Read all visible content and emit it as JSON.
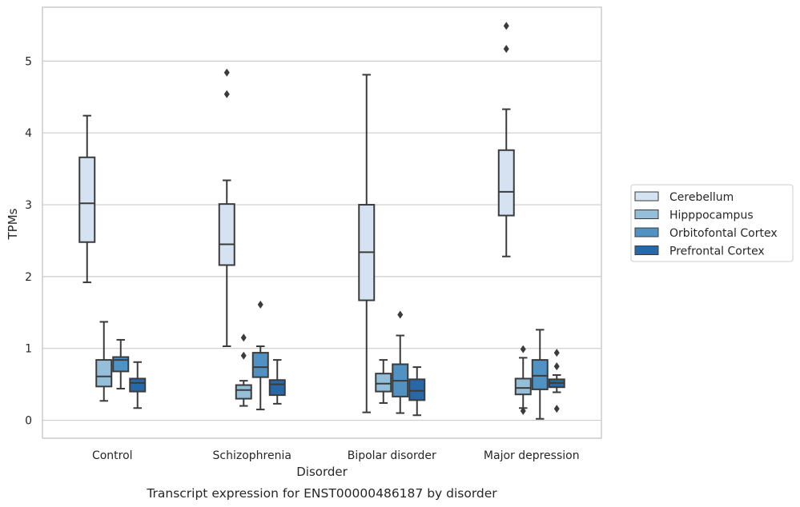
{
  "caption": "Transcript expression for ENST00000486187 by disorder",
  "chart_data": {
    "type": "boxplot",
    "xlabel": "Disorder",
    "ylabel": "TPMs",
    "ylim": [
      -0.25,
      5.75
    ],
    "yticks": [
      0,
      1,
      2,
      3,
      4,
      5
    ],
    "grid": "horizontal",
    "legend_position": "right",
    "categories": [
      "Control",
      "Schizophrenia",
      "Bipolar disorder",
      "Major depression"
    ],
    "series": [
      {
        "name": "Cerebellum",
        "color": "#d4e2f1",
        "boxes": [
          {
            "whisker_low": 1.92,
            "q1": 2.48,
            "median": 3.02,
            "q3": 3.66,
            "whisker_high": 4.24,
            "outliers": []
          },
          {
            "whisker_low": 1.03,
            "q1": 2.16,
            "median": 2.45,
            "q3": 3.01,
            "whisker_high": 3.34,
            "outliers": [
              4.54,
              4.84
            ]
          },
          {
            "whisker_low": 0.11,
            "q1": 1.67,
            "median": 2.34,
            "q3": 3.0,
            "whisker_high": 4.81,
            "outliers": []
          },
          {
            "whisker_low": 2.28,
            "q1": 2.85,
            "median": 3.18,
            "q3": 3.76,
            "whisker_high": 4.33,
            "outliers": [
              5.17,
              5.49
            ]
          }
        ]
      },
      {
        "name": "Hipppocampus",
        "color": "#95bfd9",
        "boxes": [
          {
            "whisker_low": 0.27,
            "q1": 0.47,
            "median": 0.61,
            "q3": 0.84,
            "whisker_high": 1.37,
            "outliers": []
          },
          {
            "whisker_low": 0.2,
            "q1": 0.3,
            "median": 0.42,
            "q3": 0.49,
            "whisker_high": 0.55,
            "outliers": [
              0.9,
              1.15
            ]
          },
          {
            "whisker_low": 0.24,
            "q1": 0.4,
            "median": 0.51,
            "q3": 0.65,
            "whisker_high": 0.84,
            "outliers": []
          },
          {
            "whisker_low": 0.17,
            "q1": 0.36,
            "median": 0.45,
            "q3": 0.58,
            "whisker_high": 0.87,
            "outliers": [
              0.13,
              0.99
            ]
          }
        ]
      },
      {
        "name": "Orbitofontal Cortex",
        "color": "#4f92c3",
        "boxes": [
          {
            "whisker_low": 0.44,
            "q1": 0.68,
            "median": 0.84,
            "q3": 0.88,
            "whisker_high": 1.12,
            "outliers": []
          },
          {
            "whisker_low": 0.15,
            "q1": 0.6,
            "median": 0.74,
            "q3": 0.94,
            "whisker_high": 1.03,
            "outliers": [
              1.61
            ]
          },
          {
            "whisker_low": 0.1,
            "q1": 0.33,
            "median": 0.55,
            "q3": 0.78,
            "whisker_high": 1.18,
            "outliers": [
              1.47
            ]
          },
          {
            "whisker_low": 0.02,
            "q1": 0.43,
            "median": 0.62,
            "q3": 0.84,
            "whisker_high": 1.26,
            "outliers": []
          }
        ]
      },
      {
        "name": "Prefrontal Cortex",
        "color": "#2868a6",
        "boxes": [
          {
            "whisker_low": 0.17,
            "q1": 0.4,
            "median": 0.52,
            "q3": 0.58,
            "whisker_high": 0.81,
            "outliers": []
          },
          {
            "whisker_low": 0.23,
            "q1": 0.35,
            "median": 0.5,
            "q3": 0.56,
            "whisker_high": 0.84,
            "outliers": []
          },
          {
            "whisker_low": 0.07,
            "q1": 0.28,
            "median": 0.41,
            "q3": 0.57,
            "whisker_high": 0.74,
            "outliers": []
          },
          {
            "whisker_low": 0.39,
            "q1": 0.46,
            "median": 0.52,
            "q3": 0.57,
            "whisker_high": 0.63,
            "outliers": [
              0.16,
              0.75,
              0.94
            ]
          }
        ]
      }
    ]
  }
}
